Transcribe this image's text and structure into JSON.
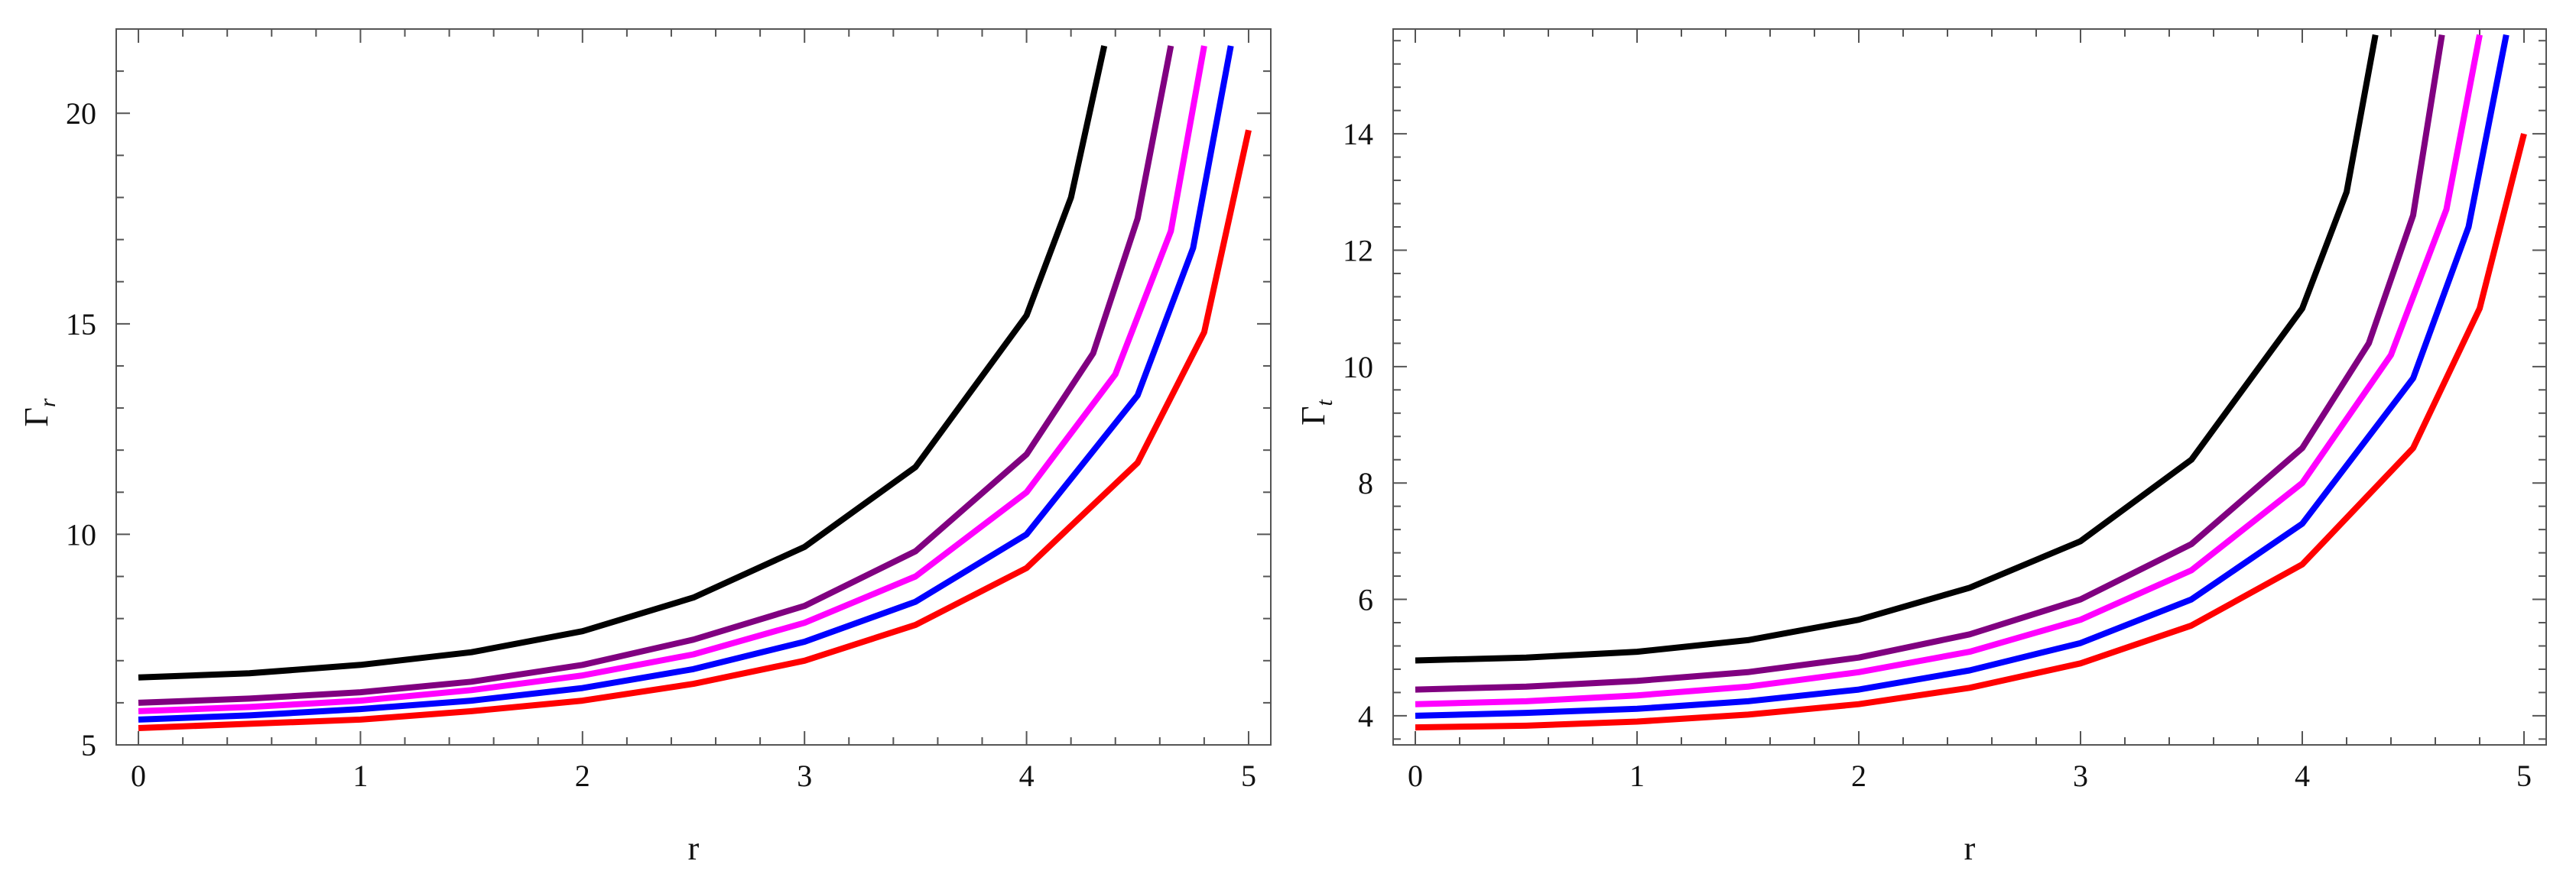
{
  "chart_data": [
    {
      "type": "line",
      "xlabel": "r",
      "ylabel": "Γ",
      "ylabel_sub": "r",
      "xlim": [
        -0.1,
        5.1
      ],
      "ylim": [
        5,
        22
      ],
      "xticks": [
        0,
        1,
        2,
        3,
        4,
        5
      ],
      "yticks": [
        5,
        10,
        15,
        20
      ],
      "grid": false,
      "series": [
        {
          "color": "#000000",
          "x": [
            0,
            0.5,
            1,
            1.5,
            2,
            2.5,
            3,
            3.5,
            4,
            4.2,
            4.35
          ],
          "y": [
            6.6,
            6.7,
            6.9,
            7.2,
            7.7,
            8.5,
            9.7,
            11.6,
            15.2,
            18.0,
            21.6
          ]
        },
        {
          "color": "#800080",
          "x": [
            0,
            0.5,
            1,
            1.5,
            2,
            2.5,
            3,
            3.5,
            4,
            4.3,
            4.5,
            4.65
          ],
          "y": [
            6.0,
            6.1,
            6.25,
            6.5,
            6.9,
            7.5,
            8.3,
            9.6,
            11.9,
            14.3,
            17.5,
            21.6
          ]
        },
        {
          "color": "#ff00ff",
          "x": [
            0,
            0.5,
            1,
            1.5,
            2,
            2.5,
            3,
            3.5,
            4,
            4.4,
            4.65,
            4.8
          ],
          "y": [
            5.8,
            5.9,
            6.05,
            6.3,
            6.65,
            7.15,
            7.9,
            9.0,
            11.0,
            13.8,
            17.2,
            21.6
          ]
        },
        {
          "color": "#0000ff",
          "x": [
            0,
            0.5,
            1,
            1.5,
            2,
            2.5,
            3,
            3.5,
            4,
            4.5,
            4.75,
            4.92
          ],
          "y": [
            5.6,
            5.7,
            5.85,
            6.05,
            6.35,
            6.8,
            7.45,
            8.4,
            10.0,
            13.3,
            16.8,
            21.6
          ]
        },
        {
          "color": "#ff0000",
          "x": [
            0,
            0.5,
            1,
            1.5,
            2,
            2.5,
            3,
            3.5,
            4,
            4.5,
            4.8,
            5.0
          ],
          "y": [
            5.4,
            5.5,
            5.6,
            5.8,
            6.05,
            6.45,
            7.0,
            7.85,
            9.2,
            11.7,
            14.8,
            19.6
          ]
        }
      ]
    },
    {
      "type": "line",
      "xlabel": "r",
      "ylabel": "Γ",
      "ylabel_sub": "t",
      "xlim": [
        -0.1,
        5.1
      ],
      "ylim": [
        3.5,
        15.8
      ],
      "xticks": [
        0,
        1,
        2,
        3,
        4,
        5
      ],
      "yticks": [
        4,
        6,
        8,
        10,
        12,
        14
      ],
      "grid": false,
      "series": [
        {
          "color": "#000000",
          "x": [
            0,
            0.5,
            1,
            1.5,
            2,
            2.5,
            3,
            3.5,
            4,
            4.2,
            4.33
          ],
          "y": [
            4.95,
            5.0,
            5.1,
            5.3,
            5.65,
            6.2,
            7.0,
            8.4,
            11.0,
            13.0,
            15.7
          ]
        },
        {
          "color": "#800080",
          "x": [
            0,
            0.5,
            1,
            1.5,
            2,
            2.5,
            3,
            3.5,
            4,
            4.3,
            4.5,
            4.63
          ],
          "y": [
            4.45,
            4.5,
            4.6,
            4.75,
            5.0,
            5.4,
            6.0,
            6.95,
            8.6,
            10.4,
            12.6,
            15.7
          ]
        },
        {
          "color": "#ff00ff",
          "x": [
            0,
            0.5,
            1,
            1.5,
            2,
            2.5,
            3,
            3.5,
            4,
            4.4,
            4.65,
            4.8
          ],
          "y": [
            4.2,
            4.25,
            4.35,
            4.5,
            4.75,
            5.1,
            5.65,
            6.5,
            8.0,
            10.2,
            12.7,
            15.7
          ]
        },
        {
          "color": "#0000ff",
          "x": [
            0,
            0.5,
            1,
            1.5,
            2,
            2.5,
            3,
            3.5,
            4,
            4.5,
            4.75,
            4.92
          ],
          "y": [
            4.0,
            4.05,
            4.12,
            4.25,
            4.45,
            4.78,
            5.25,
            6.0,
            7.3,
            9.8,
            12.4,
            15.7
          ]
        },
        {
          "color": "#ff0000",
          "x": [
            0,
            0.5,
            1,
            1.5,
            2,
            2.5,
            3,
            3.5,
            4,
            4.5,
            4.8,
            5.0
          ],
          "y": [
            3.8,
            3.83,
            3.9,
            4.02,
            4.2,
            4.48,
            4.9,
            5.55,
            6.6,
            8.6,
            11.0,
            14.0
          ]
        }
      ]
    }
  ]
}
